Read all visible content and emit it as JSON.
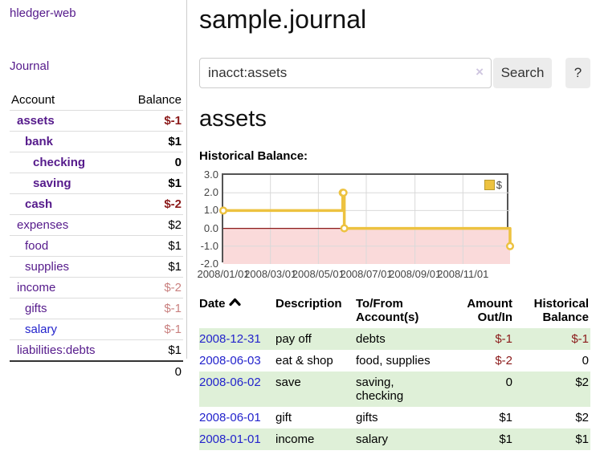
{
  "app": {
    "brand": "hledger-web",
    "nav_journal": "Journal"
  },
  "colors": {
    "link_purple": "#551a8b",
    "link_blue": "#2323cc",
    "negative": "#8b1a1a",
    "negative_muted": "#c9807f",
    "row_green": "#dff0d8",
    "chart_line": "#edc240",
    "chart_negative_region": "#fadada",
    "chart_zero_line": "#8b1a1a",
    "chart_border": "#545454"
  },
  "sidebar": {
    "headers": {
      "account": "Account",
      "balance": "Balance"
    },
    "accounts": [
      {
        "name": "assets",
        "depth": 0,
        "bold": true,
        "balance": "$-1",
        "balance_class": "neg"
      },
      {
        "name": "bank",
        "depth": 1,
        "bold": true,
        "balance": "$1",
        "balance_class": ""
      },
      {
        "name": "checking",
        "depth": 2,
        "bold": true,
        "balance": "0",
        "balance_class": ""
      },
      {
        "name": "saving",
        "depth": 2,
        "bold": true,
        "balance": "$1",
        "balance_class": ""
      },
      {
        "name": "cash",
        "depth": 1,
        "bold": true,
        "balance": "$-2",
        "balance_class": "neg"
      },
      {
        "name": "expenses",
        "depth": 0,
        "bold": false,
        "balance": "$2",
        "balance_class": ""
      },
      {
        "name": "food",
        "depth": 1,
        "bold": false,
        "balance": "$1",
        "balance_class": ""
      },
      {
        "name": "supplies",
        "depth": 1,
        "bold": false,
        "balance": "$1",
        "balance_class": ""
      },
      {
        "name": "income",
        "depth": 0,
        "bold": false,
        "balance": "$-2",
        "balance_class": "negmuted"
      },
      {
        "name": "gifts",
        "depth": 1,
        "bold": false,
        "balance": "$-1",
        "balance_class": "negmuted"
      },
      {
        "name": "salary",
        "depth": 1,
        "bold": false,
        "balance": "$-1",
        "balance_class": "negmuted",
        "link_color": "blue"
      },
      {
        "name": "liabilities:debts",
        "depth": 0,
        "bold": false,
        "balance": "$1",
        "balance_class": ""
      }
    ],
    "total": "0"
  },
  "header": {
    "title": "sample.journal"
  },
  "search": {
    "value": "inacct:assets",
    "clear_icon": "×",
    "button": "Search",
    "help_button": "?"
  },
  "account_page": {
    "heading": "assets",
    "chart_label": "Historical Balance:"
  },
  "chart_data": {
    "type": "line",
    "step": true,
    "title": "Historical Balance:",
    "series": [
      {
        "name": "$",
        "color": "#edc240",
        "points": [
          [
            "2008-01-01",
            1
          ],
          [
            "2008-06-01",
            2
          ],
          [
            "2008-06-02",
            2
          ],
          [
            "2008-06-03",
            0
          ],
          [
            "2008-12-31",
            -1
          ]
        ]
      }
    ],
    "xlim": [
      "2008-01-01",
      "2008-12-31"
    ],
    "ylim": [
      -2,
      3
    ],
    "y_ticks": [
      "3.0",
      "2.0",
      "1.0",
      "0.0",
      "-1.0",
      "-2.0"
    ],
    "x_ticks": [
      "2008/01/01",
      "2008/03/01",
      "2008/05/01",
      "2008/07/01",
      "2008/09/01",
      "2008/11/01"
    ],
    "legend": {
      "label": "$",
      "position": "top-right"
    },
    "grid": true,
    "negative_region_shaded": true
  },
  "register": {
    "headers": [
      {
        "label": "Date",
        "sorted": "asc",
        "align": "left"
      },
      {
        "label": "Description",
        "align": "left"
      },
      {
        "label": "To/From Account(s)",
        "align": "left"
      },
      {
        "label": "Amount Out/In",
        "align": "right"
      },
      {
        "label": "Historical Balance",
        "align": "right"
      }
    ],
    "rows": [
      {
        "date": "2008-12-31",
        "description": "pay off",
        "accounts": "debts",
        "amount": "$-1",
        "amount_neg": true,
        "balance": "$-1",
        "balance_neg": true
      },
      {
        "date": "2008-06-03",
        "description": "eat & shop",
        "accounts": "food, supplies",
        "amount": "$-2",
        "amount_neg": true,
        "balance": "0",
        "balance_neg": false
      },
      {
        "date": "2008-06-02",
        "description": "save",
        "accounts": "saving, checking",
        "amount": "0",
        "amount_neg": false,
        "balance": "$2",
        "balance_neg": false
      },
      {
        "date": "2008-06-01",
        "description": "gift",
        "accounts": "gifts",
        "amount": "$1",
        "amount_neg": false,
        "balance": "$2",
        "balance_neg": false
      },
      {
        "date": "2008-01-01",
        "description": "income",
        "accounts": "salary",
        "amount": "$1",
        "amount_neg": false,
        "balance": "$1",
        "balance_neg": false
      }
    ]
  }
}
